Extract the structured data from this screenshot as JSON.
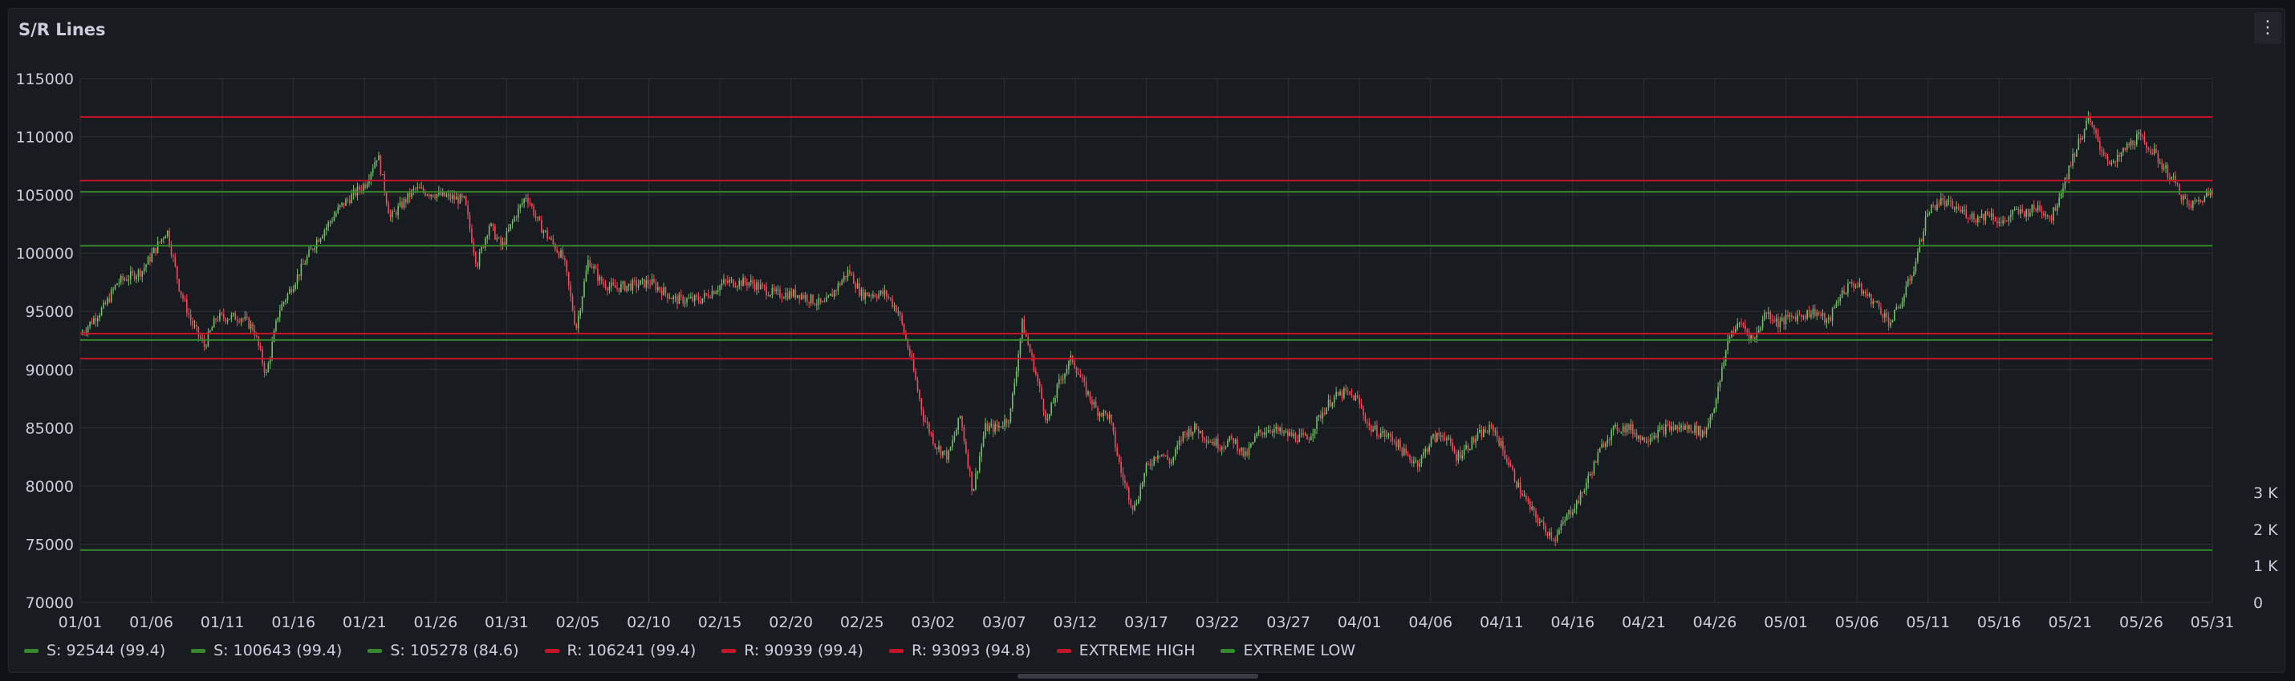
{
  "panel": {
    "title": "S/R Lines",
    "menu_icon": "kebab-menu-icon"
  },
  "chart_data": {
    "type": "candlestick",
    "title": "S/R Lines",
    "x_ticks": [
      "01/01",
      "01/06",
      "01/11",
      "01/16",
      "01/21",
      "01/26",
      "01/31",
      "02/05",
      "02/10",
      "02/15",
      "02/20",
      "02/25",
      "03/02",
      "03/07",
      "03/12",
      "03/17",
      "03/22",
      "03/27",
      "04/01",
      "04/06",
      "04/11",
      "04/16",
      "04/21",
      "04/26",
      "05/01",
      "05/06",
      "05/11",
      "05/16",
      "05/21",
      "05/26",
      "05/31"
    ],
    "y_ticks": [
      70000,
      75000,
      80000,
      85000,
      90000,
      95000,
      100000,
      105000,
      110000,
      115000
    ],
    "ylim": [
      70000,
      115000
    ],
    "y2_ticks": [
      "0",
      "1 K",
      "2 K",
      "3 K"
    ],
    "x_range_days": [
      0,
      152
    ],
    "price_path": [
      [
        0,
        93000
      ],
      [
        2,
        95500
      ],
      [
        3,
        97500
      ],
      [
        5,
        98500
      ],
      [
        7,
        102000
      ],
      [
        8,
        97000
      ],
      [
        9,
        94000
      ],
      [
        10,
        92000
      ],
      [
        11,
        94500
      ],
      [
        13,
        94500
      ],
      [
        14,
        93500
      ],
      [
        15,
        89500
      ],
      [
        16,
        95000
      ],
      [
        18,
        99000
      ],
      [
        19,
        101000
      ],
      [
        21,
        104000
      ],
      [
        23,
        106000
      ],
      [
        24,
        108500
      ],
      [
        25,
        103000
      ],
      [
        27,
        105500
      ],
      [
        29,
        105000
      ],
      [
        31,
        104500
      ],
      [
        32,
        99000
      ],
      [
        33,
        102500
      ],
      [
        34,
        100500
      ],
      [
        35,
        103000
      ],
      [
        36,
        105000
      ],
      [
        37,
        102500
      ],
      [
        39,
        99500
      ],
      [
        40,
        93500
      ],
      [
        41,
        99500
      ],
      [
        42,
        97500
      ],
      [
        43,
        97000
      ],
      [
        46,
        97500
      ],
      [
        48,
        96000
      ],
      [
        50,
        96000
      ],
      [
        52,
        97500
      ],
      [
        54,
        97500
      ],
      [
        56,
        96500
      ],
      [
        58,
        96500
      ],
      [
        60,
        95500
      ],
      [
        62,
        98500
      ],
      [
        63,
        96500
      ],
      [
        65,
        96500
      ],
      [
        66,
        95000
      ],
      [
        67,
        91000
      ],
      [
        68,
        86000
      ],
      [
        69,
        83500
      ],
      [
        70,
        82500
      ],
      [
        71,
        86000
      ],
      [
        72,
        79500
      ],
      [
        73,
        85000
      ],
      [
        74,
        85000
      ],
      [
        75,
        86000
      ],
      [
        76,
        94000
      ],
      [
        77,
        90000
      ],
      [
        78,
        85500
      ],
      [
        79,
        89000
      ],
      [
        80,
        91000
      ],
      [
        81,
        88500
      ],
      [
        82,
        86500
      ],
      [
        83,
        86000
      ],
      [
        84,
        81000
      ],
      [
        85,
        78000
      ],
      [
        86,
        81500
      ],
      [
        87,
        83000
      ],
      [
        88,
        82000
      ],
      [
        89,
        84500
      ],
      [
        90,
        85000
      ],
      [
        91,
        84000
      ],
      [
        92,
        83500
      ],
      [
        93,
        84000
      ],
      [
        94,
        82500
      ],
      [
        95,
        84500
      ],
      [
        96,
        85000
      ],
      [
        97,
        84500
      ],
      [
        99,
        84000
      ],
      [
        100,
        86000
      ],
      [
        101,
        87500
      ],
      [
        102,
        88000
      ],
      [
        103,
        87500
      ],
      [
        104,
        85000
      ],
      [
        106,
        84000
      ],
      [
        107,
        82500
      ],
      [
        108,
        82000
      ],
      [
        109,
        84000
      ],
      [
        110,
        84500
      ],
      [
        111,
        82500
      ],
      [
        112,
        83500
      ],
      [
        113,
        84500
      ],
      [
        114,
        85000
      ],
      [
        115,
        82500
      ],
      [
        116,
        80000
      ],
      [
        117,
        78000
      ],
      [
        118,
        76500
      ],
      [
        119,
        75500
      ],
      [
        120,
        77500
      ],
      [
        121,
        79000
      ],
      [
        122,
        81500
      ],
      [
        123,
        84000
      ],
      [
        124,
        85000
      ],
      [
        125,
        85000
      ],
      [
        126,
        84000
      ],
      [
        128,
        85000
      ],
      [
        130,
        85000
      ],
      [
        131,
        84500
      ],
      [
        132,
        87500
      ],
      [
        133,
        93000
      ],
      [
        134,
        94000
      ],
      [
        135,
        92500
      ],
      [
        136,
        95000
      ],
      [
        137,
        94000
      ],
      [
        138,
        94500
      ],
      [
        140,
        95000
      ],
      [
        141,
        94000
      ],
      [
        142,
        96500
      ],
      [
        143,
        97500
      ],
      [
        144,
        96500
      ],
      [
        145,
        95500
      ],
      [
        146,
        94000
      ],
      [
        147,
        96000
      ],
      [
        148,
        99000
      ],
      [
        149,
        103500
      ],
      [
        150,
        104500
      ],
      [
        151,
        104000
      ],
      [
        152,
        103500
      ],
      [
        153,
        103000
      ],
      [
        154,
        103500
      ],
      [
        155,
        102500
      ],
      [
        156,
        103500
      ],
      [
        157,
        103500
      ],
      [
        158,
        104000
      ],
      [
        159,
        103000
      ],
      [
        160,
        106000
      ],
      [
        161,
        109000
      ],
      [
        162,
        111500
      ],
      [
        163,
        109000
      ],
      [
        164,
        107500
      ],
      [
        165,
        109000
      ],
      [
        166,
        110000
      ],
      [
        167,
        109000
      ],
      [
        168,
        107500
      ],
      [
        169,
        106000
      ],
      [
        170,
        104000
      ],
      [
        171,
        104500
      ],
      [
        172,
        105500
      ]
    ],
    "x_max": 172,
    "horizontal_lines": [
      {
        "name": "S: 92544 (99.4)",
        "value": 92544,
        "color": "#37872d"
      },
      {
        "name": "S: 100643 (99.4)",
        "value": 100643,
        "color": "#37872d"
      },
      {
        "name": "S: 105278 (84.6)",
        "value": 105278,
        "color": "#37872d"
      },
      {
        "name": "R: 106241 (99.4)",
        "value": 106241,
        "color": "#c4162a"
      },
      {
        "name": "R: 90939 (99.4)",
        "value": 90939,
        "color": "#c4162a"
      },
      {
        "name": "R: 93093 (94.8)",
        "value": 93093,
        "color": "#c4162a"
      },
      {
        "name": "EXTREME HIGH",
        "value": 111700,
        "color": "#c4162a"
      },
      {
        "name": "EXTREME LOW",
        "value": 74500,
        "color": "#37872d"
      }
    ],
    "colors": {
      "up": "#73bf69",
      "down": "#f2495c",
      "grid": "#2c2f35",
      "text": "#ccccdc"
    },
    "grid": true,
    "legend_position": "bottom-left"
  }
}
